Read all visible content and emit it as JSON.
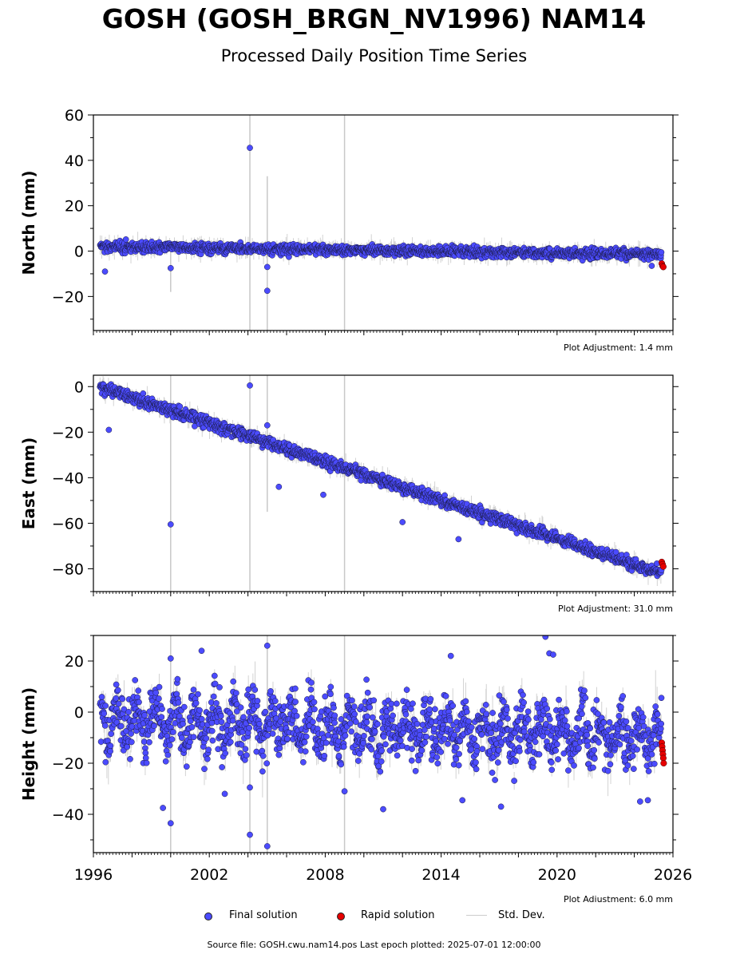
{
  "title": "GOSH (GOSH_BRGN_NV1996) NAM14",
  "subtitle": "Processed Daily Position Time Series",
  "source_text": "Source file: GOSH.cwu.nam14.pos  Last epoch plotted: 2025-07-01 12:00:00",
  "legend": [
    {
      "label": "Final solution",
      "kind": "dot",
      "color": "#4b4bff"
    },
    {
      "label": "Rapid solution",
      "kind": "dot",
      "color": "#e60000"
    },
    {
      "label": "Std. Dev.",
      "kind": "line",
      "color": "#cccccc"
    }
  ],
  "colors": {
    "final": "#4b4bff",
    "rapid": "#e60000",
    "stddev": "#c8c8c8",
    "edge": "#1a1a40"
  },
  "chart_data": [
    {
      "type": "scatter",
      "ylabel": "North (mm)",
      "xlim": [
        1996,
        2026
      ],
      "ylim": [
        -35,
        60
      ],
      "yticks": [
        -20,
        0,
        20,
        40,
        60
      ],
      "x_tick_labels_visible": false,
      "adjustment": "Plot Adjustment: 1.4 mm",
      "trend": {
        "start_value": 2.0,
        "end_value": -1.5
      },
      "scatter_sd": 1.5,
      "error_sd": 2.5,
      "outliers": [
        {
          "x": 2004.1,
          "y": 45.5
        },
        {
          "x": 2005.0,
          "y": -17.5
        },
        {
          "x": 2005.0,
          "y": -7.0
        },
        {
          "x": 1996.6,
          "y": -9.0
        },
        {
          "x": 2000.0,
          "y": -7.5
        },
        {
          "x": 2024.9,
          "y": -6.5
        }
      ],
      "rapid_points": [
        {
          "x": 2025.42,
          "y": -5.5
        },
        {
          "x": 2025.46,
          "y": -6.5
        },
        {
          "x": 2025.5,
          "y": -7.0
        }
      ],
      "tall_error_bars": [
        {
          "x": 2000.0,
          "y_low": -18,
          "y_high": 0
        },
        {
          "x": 2004.1,
          "y_low": -35,
          "y_high": 60
        },
        {
          "x": 2005.0,
          "y_low": -35,
          "y_high": 33
        },
        {
          "x": 2009.0,
          "y_low": -35,
          "y_high": 60
        }
      ]
    },
    {
      "type": "scatter",
      "ylabel": "East (mm)",
      "xlim": [
        1996,
        2026
      ],
      "ylim": [
        -90,
        5
      ],
      "yticks": [
        -80,
        -60,
        -40,
        -20,
        0
      ],
      "x_tick_labels_visible": false,
      "adjustment": "Plot Adjustment: 31.0 mm",
      "trend": {
        "start_value": 0.0,
        "end_value": -82.0
      },
      "scatter_sd": 1.8,
      "error_sd": 2.5,
      "outliers": [
        {
          "x": 2004.1,
          "y": 0.5
        },
        {
          "x": 2000.0,
          "y": -60.5
        },
        {
          "x": 2005.0,
          "y": -17.0
        },
        {
          "x": 1996.8,
          "y": -19.0
        },
        {
          "x": 2014.9,
          "y": -67.0
        },
        {
          "x": 2012.0,
          "y": -59.5
        },
        {
          "x": 2007.9,
          "y": -47.5
        },
        {
          "x": 2005.6,
          "y": -44.0
        }
      ],
      "rapid_points": [
        {
          "x": 2025.42,
          "y": -77.0
        },
        {
          "x": 2025.46,
          "y": -78.0
        },
        {
          "x": 2025.5,
          "y": -79.0
        }
      ],
      "tall_error_bars": [
        {
          "x": 2000.0,
          "y_low": -90,
          "y_high": 5
        },
        {
          "x": 2004.1,
          "y_low": -90,
          "y_high": 5
        },
        {
          "x": 2005.0,
          "y_low": -55,
          "y_high": 5
        },
        {
          "x": 2009.0,
          "y_low": -90,
          "y_high": 5
        }
      ]
    },
    {
      "type": "scatter",
      "ylabel": "Height (mm)",
      "xlim": [
        1996,
        2026
      ],
      "ylim": [
        -55,
        30
      ],
      "yticks": [
        -40,
        -20,
        0,
        20
      ],
      "x_tick_labels_visible": true,
      "xticks": [
        1996,
        2002,
        2008,
        2014,
        2020,
        2026
      ],
      "adjustment": "Plot Adjustment: 6.0 mm",
      "trend": {
        "start_value": -3.0,
        "end_value": -10.0
      },
      "scatter_sd": 8.0,
      "error_sd": 6.0,
      "outliers": [
        {
          "x": 2005.0,
          "y": 26.0
        },
        {
          "x": 2005.0,
          "y": -52.5
        },
        {
          "x": 2004.1,
          "y": -48.0
        },
        {
          "x": 2004.1,
          "y": -29.5
        },
        {
          "x": 2000.0,
          "y": 21.0
        },
        {
          "x": 2000.0,
          "y": -43.5
        },
        {
          "x": 1999.6,
          "y": -37.5
        },
        {
          "x": 2001.6,
          "y": 24.0
        },
        {
          "x": 2019.4,
          "y": 29.5
        },
        {
          "x": 2019.6,
          "y": 23.0
        },
        {
          "x": 2019.8,
          "y": 22.5
        },
        {
          "x": 2014.5,
          "y": 22.0
        },
        {
          "x": 2011.0,
          "y": -38.0
        },
        {
          "x": 2015.1,
          "y": -34.5
        },
        {
          "x": 2024.3,
          "y": -35.0
        },
        {
          "x": 2009.0,
          "y": -31.0
        },
        {
          "x": 2002.8,
          "y": -32.0
        },
        {
          "x": 2024.7,
          "y": -34.5
        },
        {
          "x": 2017.1,
          "y": -37.0
        }
      ],
      "rapid_points": [
        {
          "x": 2025.42,
          "y": -12.0
        },
        {
          "x": 2025.44,
          "y": -13.5
        },
        {
          "x": 2025.46,
          "y": -15.0
        },
        {
          "x": 2025.48,
          "y": -16.5
        },
        {
          "x": 2025.5,
          "y": -18.0
        },
        {
          "x": 2025.52,
          "y": -20.0
        }
      ],
      "tall_error_bars": [
        {
          "x": 2000.0,
          "y_low": -55,
          "y_high": 30
        },
        {
          "x": 2004.1,
          "y_low": -55,
          "y_high": 5
        },
        {
          "x": 2005.0,
          "y_low": -55,
          "y_high": 30
        },
        {
          "x": 2009.0,
          "y_low": -55,
          "y_high": 30
        }
      ]
    }
  ]
}
